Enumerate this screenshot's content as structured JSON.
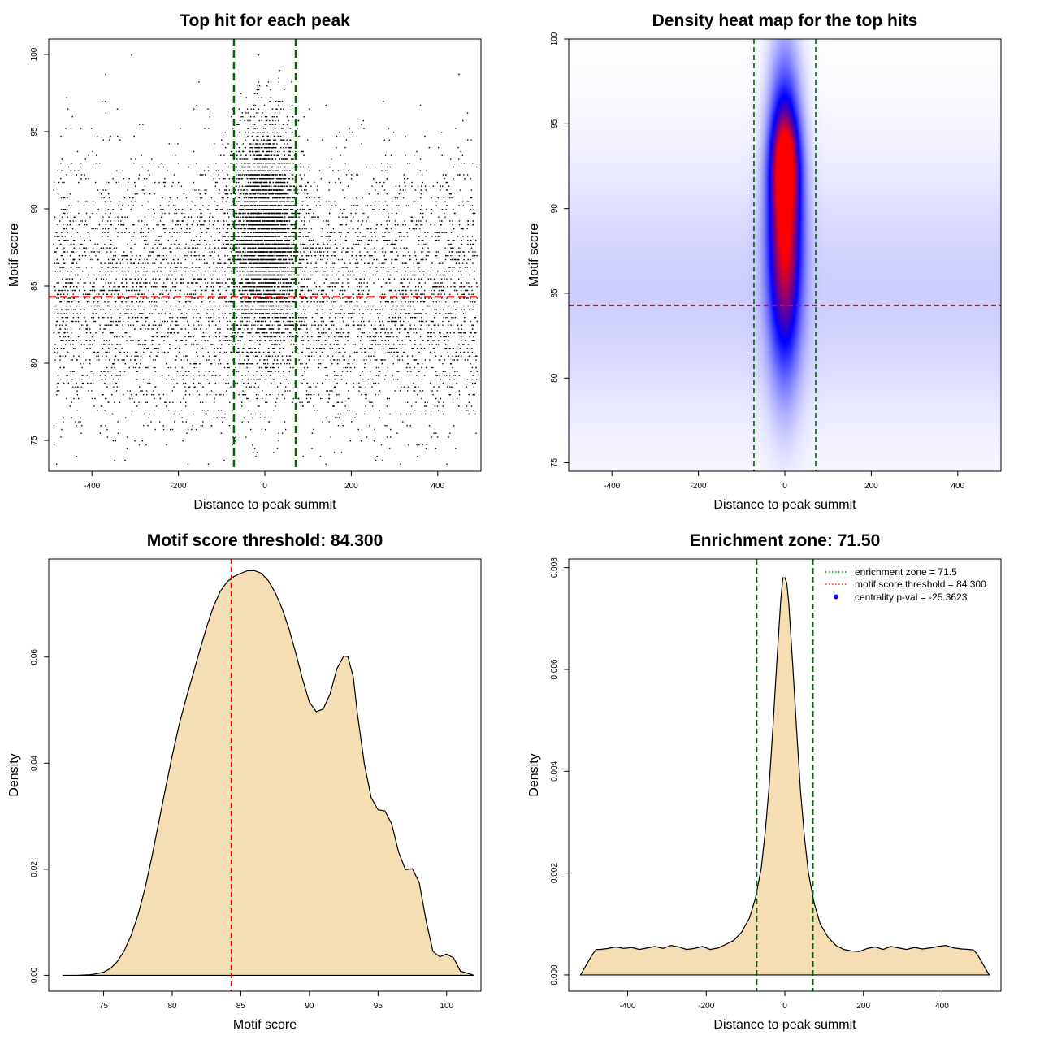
{
  "chart_data": [
    {
      "id": "scatter",
      "type": "scatter",
      "title": "Top hit for each peak",
      "xlabel": "Distance to peak summit",
      "ylabel": "Motif score",
      "xlim": [
        -500,
        500
      ],
      "ylim": [
        73,
        101
      ],
      "xticks": [
        -400,
        -200,
        0,
        200,
        400
      ],
      "yticks": [
        75,
        80,
        85,
        90,
        95,
        100
      ],
      "xtick_labels": [
        "-400",
        "-200",
        "0",
        "200",
        "400"
      ],
      "ytick_labels": [
        "75",
        "80",
        "85",
        "90",
        "95",
        "100"
      ],
      "vlines": [
        -71.5,
        71.5
      ],
      "hline": 84.3,
      "vline_color": "#006400",
      "hline_color": "#ff0000",
      "point_color": "#000000",
      "n_points_approx": 9000,
      "central_points_fraction": 0.4
    },
    {
      "id": "heatmap",
      "type": "heatmap",
      "title": "Density heat map for the top hits",
      "xlabel": "Distance to peak summit",
      "ylabel": "Motif score",
      "xlim": [
        -500,
        500
      ],
      "ylim": [
        74.5,
        100
      ],
      "xticks": [
        -400,
        -200,
        0,
        200,
        400
      ],
      "yticks": [
        75,
        80,
        85,
        90,
        95,
        100
      ],
      "xtick_labels": [
        "-400",
        "-200",
        "0",
        "200",
        "400"
      ],
      "ytick_labels": [
        "75",
        "80",
        "85",
        "90",
        "95",
        "100"
      ],
      "vlines": [
        -71.5,
        71.5
      ],
      "hline": 84.3,
      "vline_color": "#006400",
      "hline_color": "#ff0000",
      "colors": [
        "#ffffff",
        "#0000ff",
        "#ff0000"
      ],
      "peak": {
        "x": 0,
        "y": 92.7
      }
    },
    {
      "id": "density-score",
      "type": "area",
      "title": "Motif score threshold: 84.300",
      "xlabel": "Motif score",
      "ylabel": "Density",
      "xlim": [
        71,
        102.5
      ],
      "ylim": [
        -0.003,
        0.0785
      ],
      "xticks": [
        75,
        80,
        85,
        90,
        95,
        100
      ],
      "yticks": [
        0.0,
        0.02,
        0.04,
        0.06
      ],
      "xtick_labels": [
        "75",
        "80",
        "85",
        "90",
        "95",
        "100"
      ],
      "ytick_labels": [
        "0.00",
        "0.02",
        "0.04",
        "0.06"
      ],
      "vline": 84.3,
      "vline_color": "#ff0000",
      "fill": "#f5deb3",
      "x": [
        72,
        73,
        74,
        74.5,
        75,
        75.5,
        76,
        76.5,
        77,
        77.5,
        78,
        78.5,
        79,
        79.5,
        80,
        80.5,
        81,
        81.5,
        82,
        82.5,
        83,
        83.5,
        84,
        84.5,
        85,
        85.5,
        86,
        86.5,
        87,
        87.5,
        88,
        88.5,
        89,
        89.5,
        90,
        90.5,
        91,
        91.5,
        92,
        92.5,
        92.8,
        93.2,
        93.5,
        94,
        94.5,
        95,
        95.5,
        96,
        96.5,
        97,
        97.5,
        98,
        98.5,
        99,
        99.5,
        100,
        100.5,
        101,
        102
      ],
      "y": [
        0.0,
        0.0,
        0.0001,
        0.0003,
        0.0006,
        0.0013,
        0.0026,
        0.0046,
        0.0075,
        0.0113,
        0.0162,
        0.0221,
        0.0286,
        0.0351,
        0.0414,
        0.0472,
        0.0521,
        0.0566,
        0.0612,
        0.0656,
        0.0695,
        0.0724,
        0.0742,
        0.0752,
        0.0758,
        0.0763,
        0.0763,
        0.0758,
        0.0744,
        0.0722,
        0.0692,
        0.0654,
        0.0608,
        0.0558,
        0.0515,
        0.0497,
        0.0502,
        0.053,
        0.0578,
        0.0602,
        0.0601,
        0.0562,
        0.0492,
        0.0399,
        0.0335,
        0.0312,
        0.031,
        0.0285,
        0.0232,
        0.0199,
        0.0201,
        0.0175,
        0.0103,
        0.0045,
        0.0035,
        0.004,
        0.0033,
        0.0008,
        0.0
      ]
    },
    {
      "id": "density-distance",
      "type": "area",
      "title": "Enrichment zone: 71.50",
      "xlabel": "Distance to peak summit",
      "ylabel": "Density",
      "xlim": [
        -550,
        550
      ],
      "ylim": [
        -0.00032,
        0.00817
      ],
      "xticks": [
        -400,
        -200,
        0,
        200,
        400
      ],
      "yticks": [
        0.0,
        0.002,
        0.004,
        0.006,
        0.008
      ],
      "xtick_labels": [
        "-400",
        "-200",
        "0",
        "200",
        "400"
      ],
      "ytick_labels": [
        "0.000",
        "0.002",
        "0.004",
        "0.006",
        "0.008"
      ],
      "vlines": [
        -71.5,
        71.5
      ],
      "vline_color": "#006400",
      "fill": "#f5deb3",
      "x": [
        -520,
        -505,
        -490,
        -480,
        -470,
        -450,
        -430,
        -410,
        -390,
        -370,
        -350,
        -330,
        -310,
        -290,
        -270,
        -250,
        -230,
        -210,
        -190,
        -170,
        -150,
        -130,
        -110,
        -90,
        -75,
        -60,
        -50,
        -40,
        -30,
        -20,
        -10,
        -5,
        0,
        5,
        10,
        20,
        30,
        40,
        50,
        60,
        75,
        90,
        110,
        130,
        150,
        170,
        190,
        210,
        230,
        250,
        270,
        290,
        310,
        330,
        350,
        370,
        390,
        410,
        430,
        450,
        470,
        480,
        490,
        505,
        520
      ],
      "y": [
        0.0,
        0.0002,
        0.0004,
        0.0005,
        0.0005,
        0.00052,
        0.00055,
        0.00052,
        0.00054,
        0.0005,
        0.00053,
        0.00056,
        0.00052,
        0.00058,
        0.00055,
        0.0005,
        0.00052,
        0.00056,
        0.0005,
        0.00053,
        0.0006,
        0.00068,
        0.00084,
        0.00112,
        0.0015,
        0.0021,
        0.0028,
        0.0037,
        0.0049,
        0.0062,
        0.0074,
        0.0078,
        0.0078,
        0.0077,
        0.0073,
        0.0061,
        0.0048,
        0.0036,
        0.0027,
        0.002,
        0.0014,
        0.001,
        0.00074,
        0.00058,
        0.0005,
        0.00047,
        0.00046,
        0.00052,
        0.00055,
        0.0005,
        0.00056,
        0.00053,
        0.0005,
        0.00054,
        0.00051,
        0.00053,
        0.00056,
        0.00058,
        0.00053,
        0.00051,
        0.0005,
        0.00049,
        0.0004,
        0.0002,
        0.0
      ]
    }
  ],
  "legend": {
    "items": [
      {
        "label": "enrichment zone = 71.5",
        "kind": "line",
        "color": "#006400",
        "dash": "dotted"
      },
      {
        "label": "motif score threshold = 84.300",
        "kind": "line",
        "color": "#ff0000",
        "dash": "dotted"
      },
      {
        "label": "centrality p-val = -25.3623",
        "kind": "point",
        "color": "#0000ff"
      }
    ]
  }
}
